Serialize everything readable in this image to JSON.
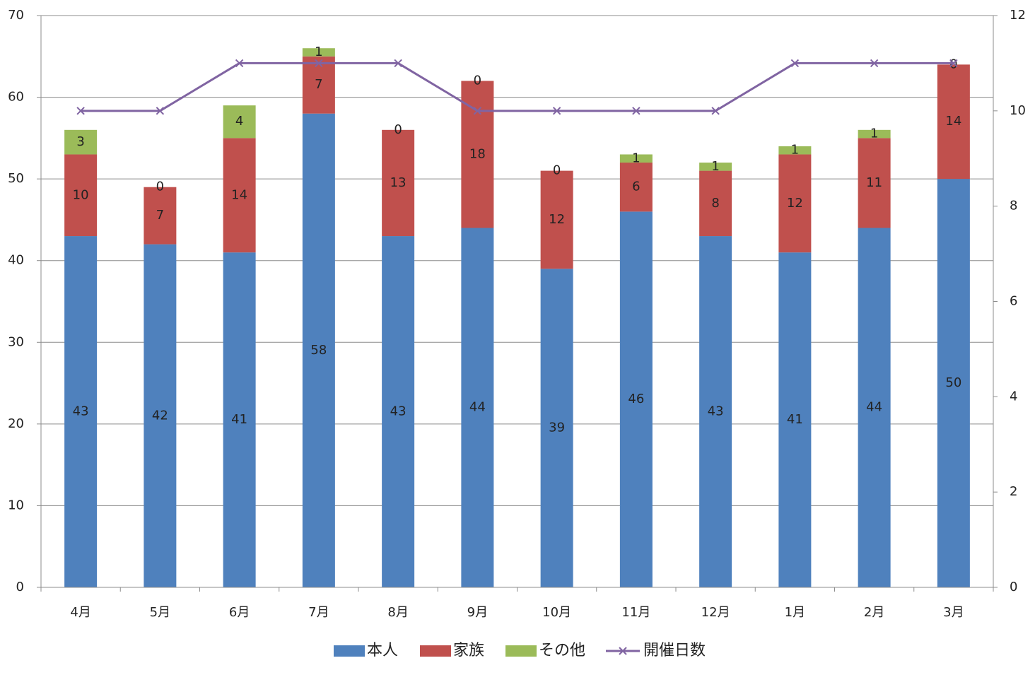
{
  "chart_data": {
    "type": "bar",
    "stacked": true,
    "categories": [
      "4月",
      "5月",
      "6月",
      "7月",
      "8月",
      "9月",
      "10月",
      "11月",
      "12月",
      "1月",
      "2月",
      "3月"
    ],
    "series": [
      {
        "name": "本人",
        "values": [
          43,
          42,
          41,
          58,
          43,
          44,
          39,
          46,
          43,
          41,
          44,
          50
        ],
        "color": "#4F81BD",
        "axis": "left"
      },
      {
        "name": "家族",
        "values": [
          10,
          7,
          14,
          7,
          13,
          18,
          12,
          6,
          8,
          12,
          11,
          14
        ],
        "color": "#C0504D",
        "axis": "left"
      },
      {
        "name": "その他",
        "values": [
          3,
          0,
          4,
          1,
          0,
          0,
          0,
          1,
          1,
          1,
          1,
          0
        ],
        "color": "#9BBB59",
        "axis": "left"
      }
    ],
    "line_series": {
      "name": "開催日数",
      "type": "line",
      "marker": "x",
      "values": [
        10,
        10,
        11,
        11,
        11,
        10,
        10,
        10,
        10,
        11,
        11,
        11
      ],
      "color": "#8064A2",
      "axis": "right"
    },
    "y_left": {
      "ylim": [
        0,
        70
      ],
      "ticks": [
        "0",
        "10",
        "20",
        "30",
        "40",
        "50",
        "60",
        "70"
      ]
    },
    "y_right": {
      "ylim": [
        0,
        12
      ],
      "ticks": [
        "0",
        "2",
        "4",
        "6",
        "8",
        "10",
        "12"
      ]
    },
    "grid": true,
    "legend_position": "bottom",
    "gridline_color": "#8c8c8c",
    "axis_color": "#8c8c8c"
  }
}
